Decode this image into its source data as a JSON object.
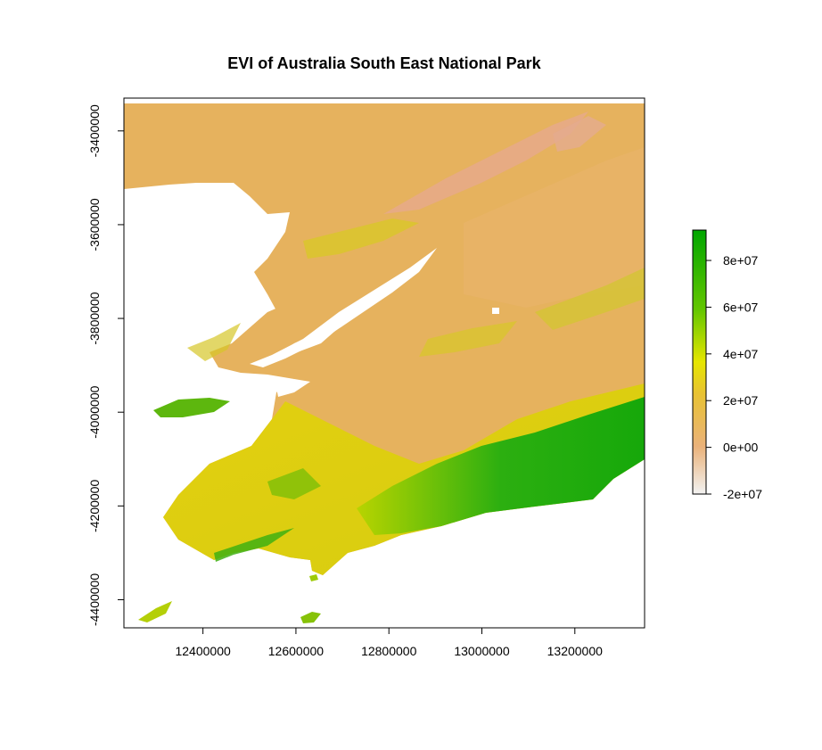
{
  "chart_data": {
    "type": "heatmap",
    "title": "EVI of Australia South East National Park",
    "xlabel": "",
    "ylabel": "",
    "xlim": [
      12230000,
      13350000
    ],
    "ylim": [
      -4460000,
      -3330000
    ],
    "x_ticks": [
      12400000,
      12600000,
      12800000,
      13000000,
      13200000
    ],
    "x_tick_labels": [
      "12400000",
      "12600000",
      "12800000",
      "13000000",
      "13200000"
    ],
    "y_ticks": [
      -3400000,
      -3600000,
      -3800000,
      -4000000,
      -4200000,
      -4400000
    ],
    "y_tick_labels": [
      "-3400000",
      "-3600000",
      "-3800000",
      "-4000000",
      "-4200000",
      "-4400000"
    ],
    "legend": {
      "placement": "right",
      "min": -20000000,
      "max": 93000000,
      "ticks": [
        -20000000,
        0,
        20000000,
        40000000,
        60000000,
        80000000
      ],
      "tick_labels": [
        "-2e+07",
        "0e+00",
        "2e+07",
        "4e+07",
        "6e+07",
        "8e+07"
      ],
      "colors": [
        "#f2f2f2",
        "#eab27a",
        "#e6e600",
        "#00a600"
      ]
    },
    "grid": false
  }
}
